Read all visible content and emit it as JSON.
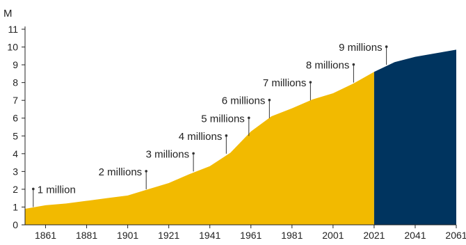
{
  "chart_data": {
    "type": "area",
    "y_unit_label": "M",
    "ylim": [
      0,
      11
    ],
    "y_ticks": [
      "0",
      "1",
      "2",
      "3",
      "4",
      "5",
      "6",
      "7",
      "8",
      "9",
      "10",
      "11"
    ],
    "xlim": [
      1851,
      2061
    ],
    "x_ticks": [
      "1861",
      "1881",
      "1901",
      "1921",
      "1941",
      "1961",
      "1981",
      "2001",
      "2021",
      "2041",
      "2061"
    ],
    "series": [
      {
        "kind": "historical",
        "color": "#F2BA00",
        "x": [
          1851,
          1861,
          1871,
          1881,
          1891,
          1901,
          1911,
          1921,
          1931,
          1941,
          1951,
          1961,
          1971,
          1981,
          1991,
          2001,
          2011,
          2021
        ],
        "y": [
          0.9,
          1.1,
          1.2,
          1.35,
          1.5,
          1.65,
          2.0,
          2.35,
          2.85,
          3.3,
          4.05,
          5.25,
          6.1,
          6.55,
          7.05,
          7.4,
          7.95,
          8.6
        ]
      },
      {
        "kind": "projection",
        "color": "#00345F",
        "x": [
          2021,
          2031,
          2041,
          2051,
          2061
        ],
        "y": [
          8.6,
          9.15,
          9.45,
          9.65,
          9.85
        ]
      }
    ],
    "annotations": [
      {
        "text": "1 million",
        "x": 1855,
        "y": 1.0
      },
      {
        "text": "2 millions",
        "x": 1910,
        "y": 2.0
      },
      {
        "text": "3 millions",
        "x": 1933,
        "y": 3.0
      },
      {
        "text": "4 millions",
        "x": 1949,
        "y": 4.0
      },
      {
        "text": "5 millions",
        "x": 1960,
        "y": 5.0
      },
      {
        "text": "6 millions",
        "x": 1970,
        "y": 6.0
      },
      {
        "text": "7 millions",
        "x": 1990,
        "y": 7.0
      },
      {
        "text": "8 millions",
        "x": 2011,
        "y": 8.0
      },
      {
        "text": "9 millions",
        "x": 2027,
        "y": 9.0
      }
    ]
  }
}
